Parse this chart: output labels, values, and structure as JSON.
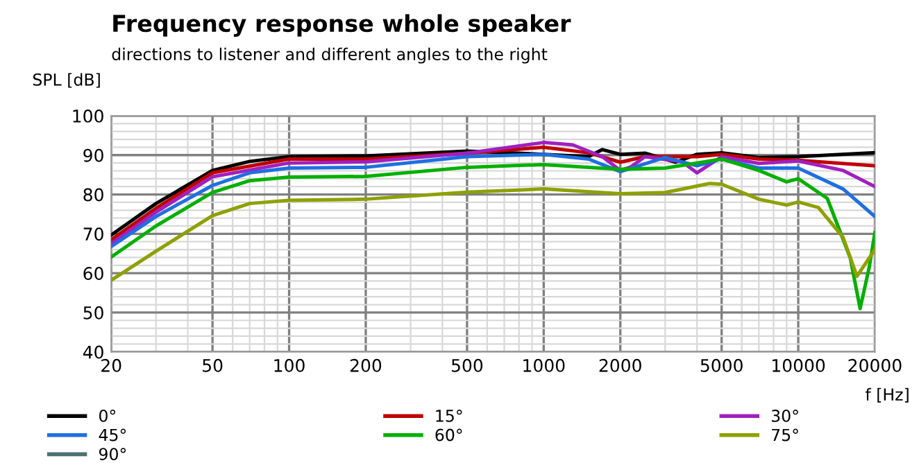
{
  "chart_data": {
    "type": "line",
    "title": "Frequency response whole speaker",
    "subtitle": "directions to listener and different angles to the right",
    "xlabel": "f [Hz]",
    "ylabel": "SPL [dB]",
    "log": "x",
    "grid": true,
    "legend": "bottom",
    "marker": "none",
    "line_style": "solid",
    "xlim": [
      20,
      20000
    ],
    "xticks": [
      20,
      50,
      100,
      200,
      500,
      1000,
      2000,
      5000,
      10000,
      20000
    ],
    "ylim": [
      40,
      100
    ],
    "yticks": [
      40,
      50,
      60,
      70,
      80,
      90,
      100
    ],
    "series": [
      {
        "name": "0°",
        "color": "#000000",
        "x": [
          20,
          30,
          50,
          70,
          100,
          200,
          500,
          1000,
          1500,
          1700,
          2000,
          2500,
          3300,
          4000,
          5000,
          7000,
          10000,
          20000
        ],
        "values": [
          69.7,
          77.7,
          86.1,
          88.4,
          89.6,
          89.8,
          91.0,
          90.2,
          89.6,
          91.4,
          90.2,
          90.5,
          88.2,
          90.2,
          90.6,
          89.4,
          89.6,
          90.6
        ]
      },
      {
        "name": "15°",
        "color": "#c00000",
        "x": [
          20,
          30,
          50,
          100,
          200,
          500,
          1000,
          1500,
          2000,
          2500,
          4000,
          5000,
          7000,
          10000,
          20000
        ],
        "values": [
          68.5,
          76.5,
          85.5,
          89.0,
          89.0,
          90.5,
          92.0,
          90.6,
          88.2,
          89.6,
          89.6,
          90.2,
          89.0,
          88.7,
          87.3
        ]
      },
      {
        "name": "30°",
        "color": "#a020c0",
        "x": [
          20,
          30,
          50,
          100,
          200,
          500,
          1000,
          1300,
          1700,
          2000,
          2200,
          2500,
          3500,
          4000,
          5000,
          7000,
          10000,
          15000,
          20000
        ],
        "values": [
          67.5,
          75.5,
          84.5,
          88.0,
          88.3,
          90.5,
          93.2,
          92.6,
          89.6,
          86.1,
          87.0,
          89.6,
          88.3,
          85.5,
          89.6,
          87.9,
          88.5,
          86.1,
          82.0
        ]
      },
      {
        "name": "45°",
        "color": "#1f6fe0",
        "x": [
          20,
          30,
          50,
          70,
          100,
          200,
          500,
          1000,
          1500,
          2000,
          3000,
          4000,
          5000,
          7000,
          10000,
          15000,
          20000
        ],
        "values": [
          66.8,
          74.4,
          82.3,
          85.5,
          86.7,
          86.9,
          89.6,
          90.2,
          89.0,
          85.8,
          89.4,
          87.3,
          89.0,
          86.7,
          86.7,
          81.4,
          74.4
        ]
      },
      {
        "name": "60°",
        "color": "#00b000",
        "x": [
          20,
          30,
          50,
          70,
          100,
          200,
          500,
          1000,
          2000,
          3000,
          5000,
          7000,
          9000,
          10000,
          13000,
          16000,
          17500,
          19000,
          20000
        ],
        "values": [
          64.1,
          72.0,
          80.5,
          83.5,
          84.4,
          84.6,
          86.9,
          87.6,
          86.4,
          86.7,
          89.0,
          86.1,
          83.2,
          84.0,
          79.0,
          63.9,
          51.0,
          61.5,
          70.3
        ]
      },
      {
        "name": "75°",
        "color": "#8fa000",
        "x": [
          20,
          30,
          50,
          70,
          100,
          200,
          500,
          1000,
          2000,
          3000,
          4500,
          5000,
          7000,
          9000,
          10000,
          12000,
          15000,
          17000,
          20000
        ],
        "values": [
          58.2,
          65.6,
          74.6,
          77.7,
          78.5,
          78.8,
          80.6,
          81.4,
          80.2,
          80.5,
          82.8,
          82.6,
          78.8,
          77.3,
          78.1,
          76.7,
          69.1,
          59.2,
          66.0
        ]
      },
      {
        "name": "90°",
        "color": "#4f7070"
      }
    ]
  }
}
